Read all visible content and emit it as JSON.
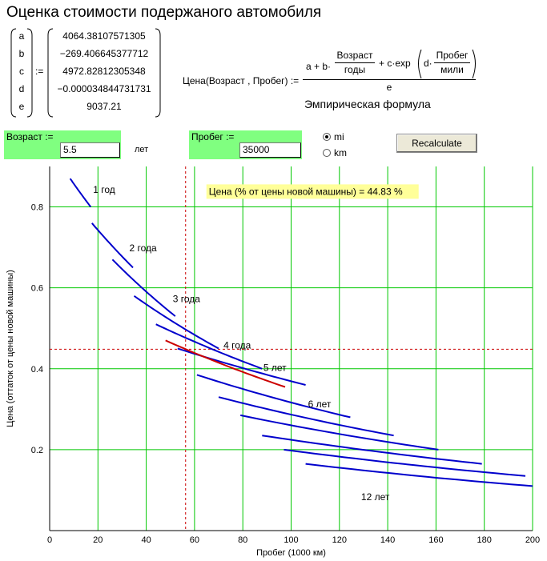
{
  "title": "Оценка стоимости подержаного автомобиля",
  "coefficients": {
    "labels": [
      "a",
      "b",
      "c",
      "d",
      "e"
    ],
    "assign": ":=",
    "values": [
      "4064.38107571305",
      "−269.406645377712",
      "4972.82812305348",
      "−0.000034844731731",
      "9037.21"
    ]
  },
  "formula": {
    "lhs": "Цена(Возраст , Пробег) :=",
    "a_plus_b": "a + b·",
    "age_num": "Возраст",
    "age_den": "годы",
    "plus_c_exp": "+ c·exp",
    "d_dot": "d·",
    "mileage_num": "Пробег",
    "mileage_den": "мили",
    "denominator": "e",
    "caption": "Эмпирическая формула"
  },
  "inputs": {
    "age": {
      "label": "Возраст :=",
      "value": "5.5",
      "unit": "лет"
    },
    "mileage": {
      "label": "Пробег :=",
      "value": "35000"
    }
  },
  "units": {
    "options": [
      {
        "label": "mi",
        "selected": true
      },
      {
        "label": "km",
        "selected": false
      }
    ]
  },
  "recalculate_label": "Recalculate",
  "chart_data": {
    "type": "line",
    "title": "",
    "xlabel": "Пробег (1000 км)",
    "ylabel": "Цена (оттаток от цены новой машины)",
    "xlim": [
      0,
      200
    ],
    "ylim": [
      0,
      0.9
    ],
    "xticks": [
      0,
      20,
      40,
      60,
      80,
      100,
      120,
      140,
      160,
      180,
      200
    ],
    "yticks": [
      0.2,
      0.4,
      0.6,
      0.8
    ],
    "grid": true,
    "annotation": "Цена (% от цены новой машины) = 44.83 %",
    "marker": {
      "x": 56.3,
      "y": 0.4483
    },
    "series": [
      {
        "name": "1 год",
        "color": "#0000cc",
        "x": [
          8.5,
          17
        ],
        "y": [
          0.87,
          0.8
        ]
      },
      {
        "name": "2 года",
        "color": "#0000cc",
        "x": [
          17.5,
          34.5
        ],
        "y": [
          0.76,
          0.65
        ]
      },
      {
        "name": "",
        "color": "#0000cc",
        "x": [
          26,
          52
        ],
        "y": [
          0.67,
          0.53
        ]
      },
      {
        "name": "3 года",
        "color": "#0000cc",
        "x": [
          35,
          70
        ],
        "y": [
          0.58,
          0.45
        ]
      },
      {
        "name": "",
        "color": "#0000cc",
        "x": [
          44,
          88
        ],
        "y": [
          0.51,
          0.4
        ]
      },
      {
        "name": "4 года",
        "color": "#0000cc",
        "x": [
          53,
          106
        ],
        "y": [
          0.45,
          0.36
        ]
      },
      {
        "name": "",
        "color": "#cc0000",
        "x": [
          48,
          97.5
        ],
        "y": [
          0.47,
          0.355
        ]
      },
      {
        "name": "5 лет",
        "color": "#0000cc",
        "x": [
          61,
          124.5
        ],
        "y": [
          0.385,
          0.28
        ]
      },
      {
        "name": "",
        "color": "#0000cc",
        "x": [
          70,
          142.5
        ],
        "y": [
          0.33,
          0.235
        ]
      },
      {
        "name": "6 лет",
        "color": "#0000cc",
        "x": [
          79,
          161
        ],
        "y": [
          0.285,
          0.2
        ]
      },
      {
        "name": "",
        "color": "#0000cc",
        "x": [
          88,
          179
        ],
        "y": [
          0.235,
          0.165
        ]
      },
      {
        "name": "",
        "color": "#0000cc",
        "x": [
          97,
          197
        ],
        "y": [
          0.2,
          0.135
        ]
      },
      {
        "name": "12 лет",
        "color": "#0000cc",
        "x": [
          106,
          200
        ],
        "y": [
          0.165,
          0.11
        ]
      }
    ],
    "curve_labels": [
      {
        "text": "1 год",
        "x": 18,
        "y": 0.835
      },
      {
        "text": "2 года",
        "x": 33,
        "y": 0.69
      },
      {
        "text": "3 года",
        "x": 51,
        "y": 0.565
      },
      {
        "text": "4 года",
        "x": 72,
        "y": 0.45
      },
      {
        "text": "5 лет",
        "x": 88.5,
        "y": 0.395
      },
      {
        "text": "6 лет",
        "x": 107,
        "y": 0.305
      },
      {
        "text": "12 лет",
        "x": 129,
        "y": 0.075
      }
    ]
  }
}
